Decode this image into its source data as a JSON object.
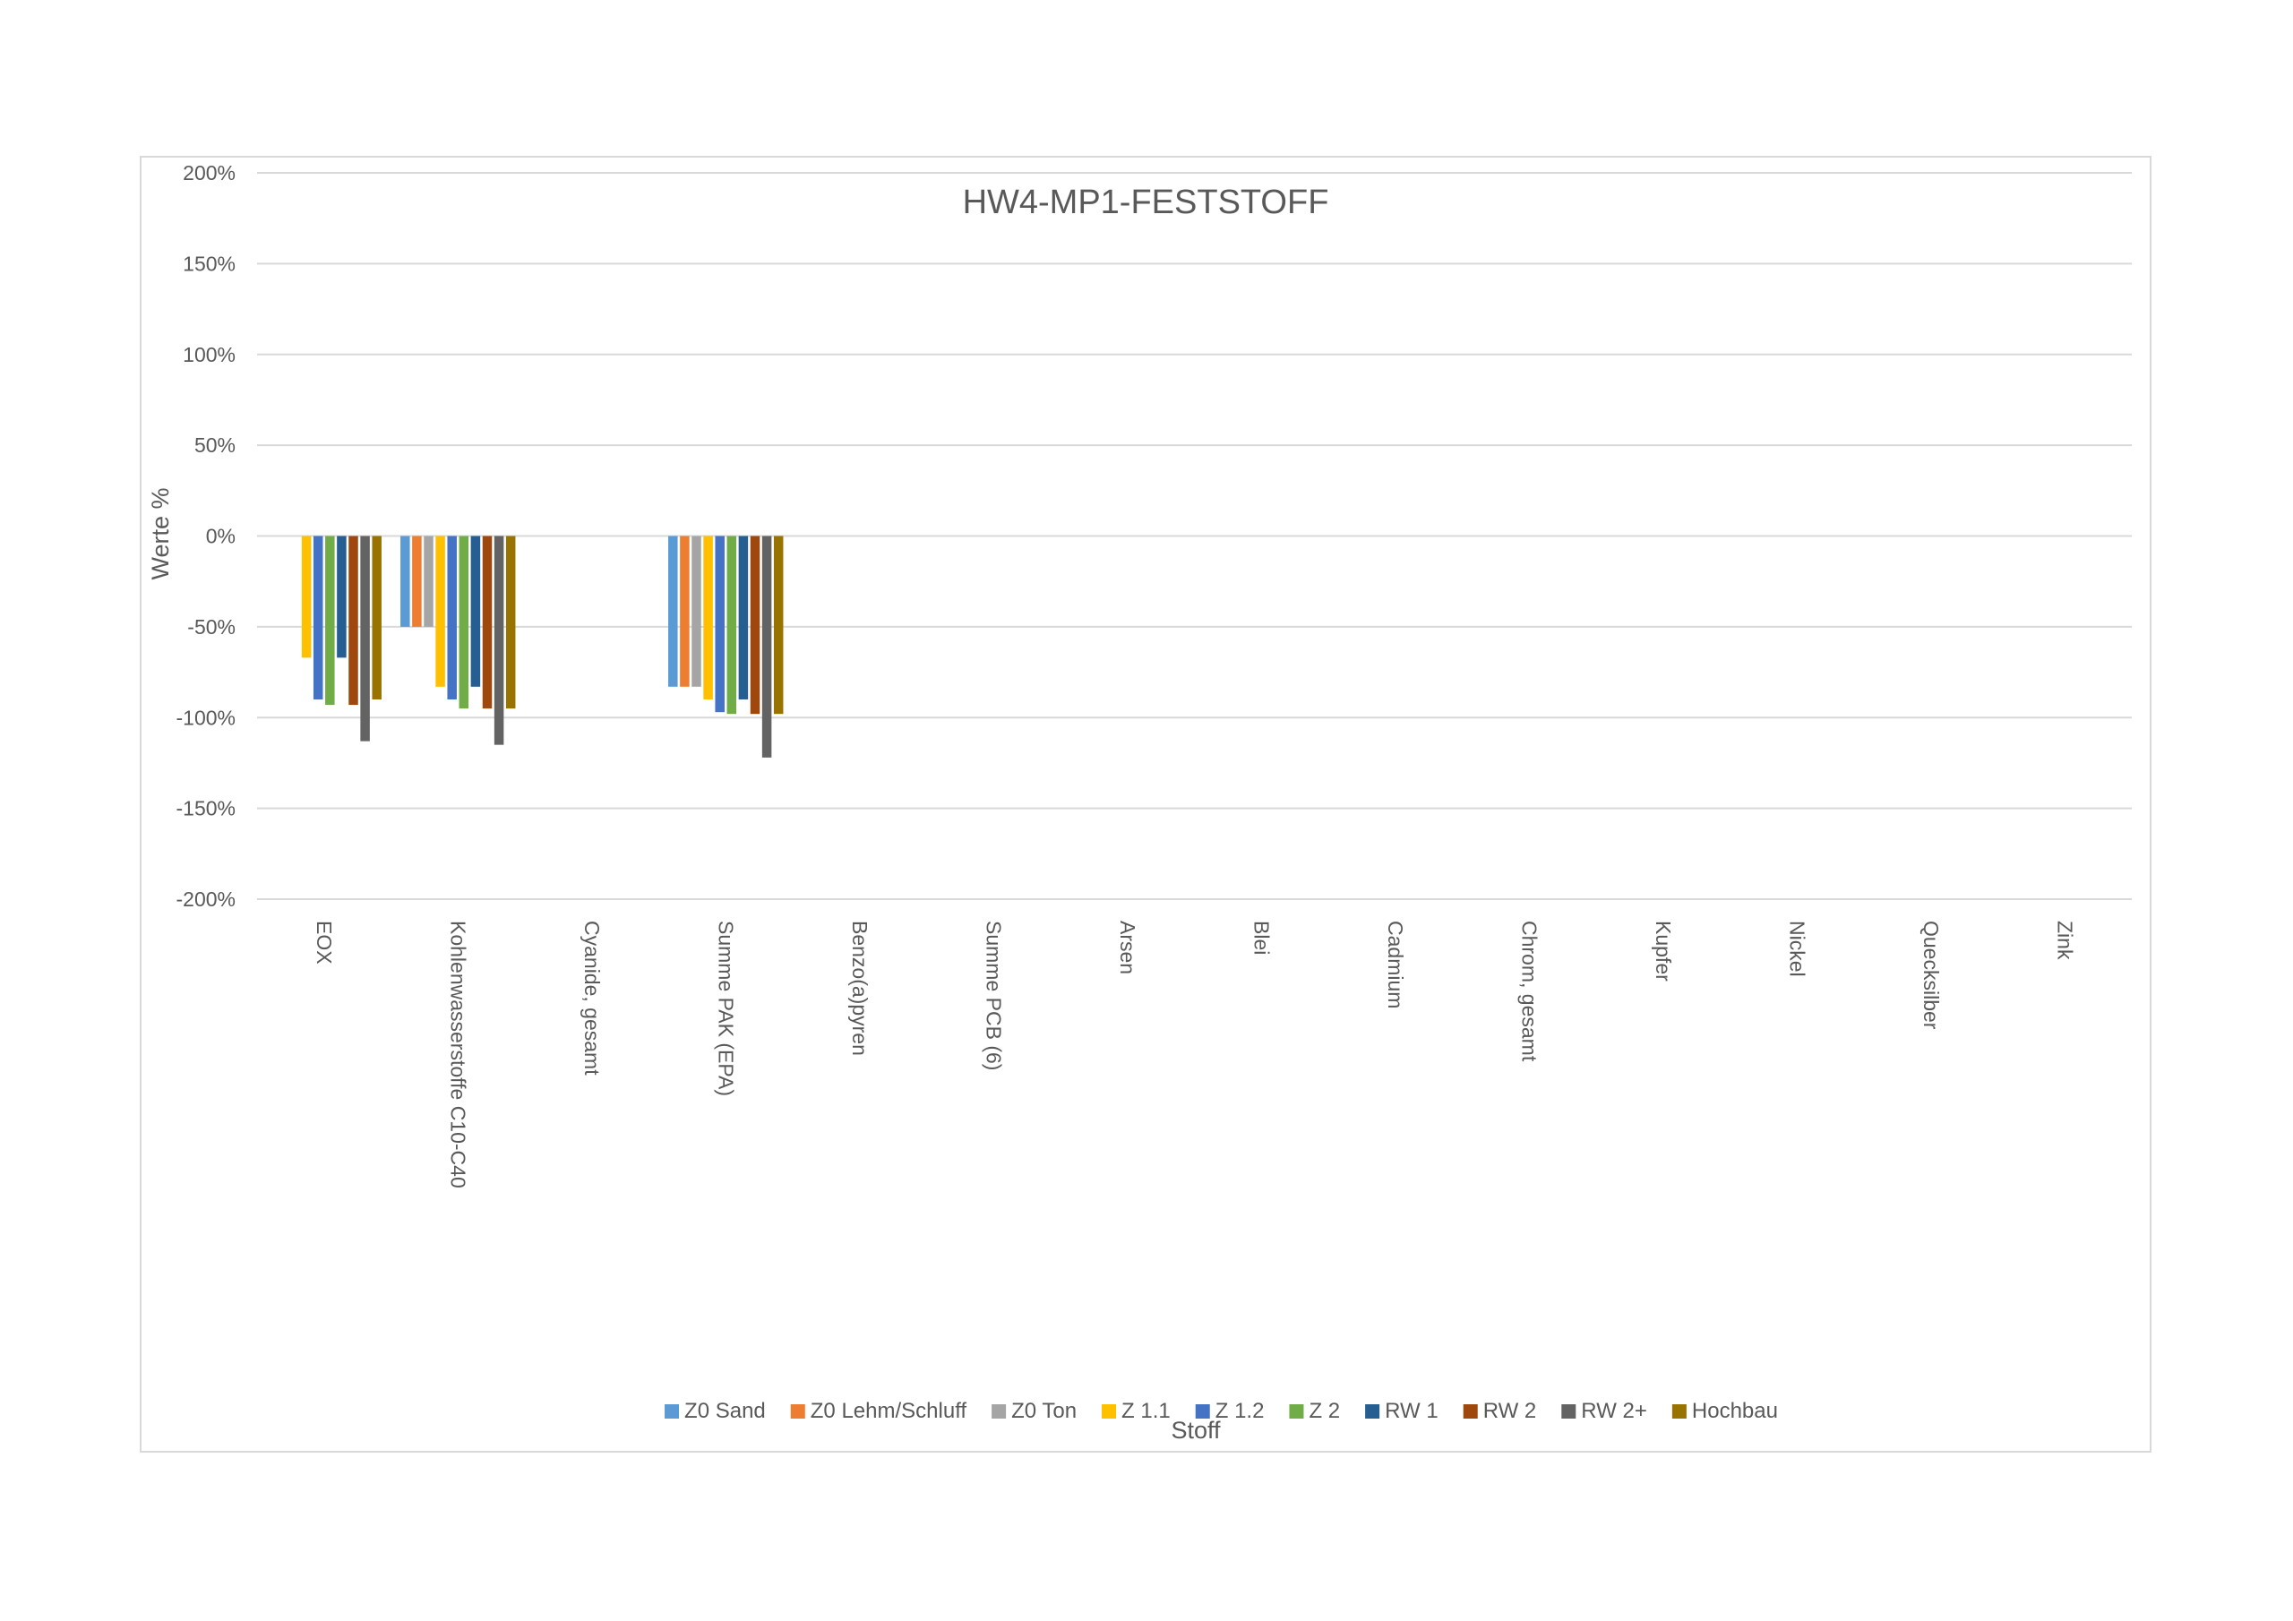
{
  "chart_data": {
    "type": "bar",
    "title": "HW4-MP1-FESTSTOFF",
    "xlabel": "Stoff",
    "ylabel": "Werte %",
    "ylim": [
      -200,
      200
    ],
    "yticks": [
      "200%",
      "150%",
      "100%",
      "50%",
      "0%",
      "-50%",
      "-100%",
      "-150%",
      "-200%"
    ],
    "ytick_values": [
      200,
      150,
      100,
      50,
      0,
      -50,
      -100,
      -150,
      -200
    ],
    "grid": true,
    "legend_position": "bottom",
    "categories": [
      "EOX",
      "Kohlenwasserstoffe C10-C40",
      "Cyanide, gesamt",
      "Summe PAK (EPA)",
      "Benzo(a)pyren",
      "Summe PCB (6)",
      "Arsen",
      "Blei",
      "Cadmium",
      "Chrom, gesamt",
      "Kupfer",
      "Nickel",
      "Quecksilber",
      "Zink"
    ],
    "series": [
      {
        "name": "Z0 Sand",
        "color": "#5B9BD5",
        "values": [
          null,
          -50,
          null,
          -83,
          null,
          null,
          null,
          null,
          null,
          null,
          null,
          null,
          null,
          null
        ]
      },
      {
        "name": "Z0 Lehm/Schluff",
        "color": "#ED7D31",
        "values": [
          null,
          -50,
          null,
          -83,
          null,
          null,
          null,
          null,
          null,
          null,
          null,
          null,
          null,
          null
        ]
      },
      {
        "name": "Z0 Ton",
        "color": "#A5A5A5",
        "values": [
          null,
          -50,
          null,
          -83,
          null,
          null,
          null,
          null,
          null,
          null,
          null,
          null,
          null,
          null
        ]
      },
      {
        "name": "Z 1.1",
        "color": "#FFC000",
        "values": [
          -67,
          -83,
          null,
          -90,
          null,
          null,
          null,
          null,
          null,
          null,
          null,
          null,
          null,
          null
        ]
      },
      {
        "name": "Z 1.2",
        "color": "#4472C4",
        "values": [
          -90,
          -90,
          null,
          -97,
          null,
          null,
          null,
          null,
          null,
          null,
          null,
          null,
          null,
          null
        ]
      },
      {
        "name": "Z 2",
        "color": "#70AD47",
        "values": [
          -93,
          -95,
          null,
          -98,
          null,
          null,
          null,
          null,
          null,
          null,
          null,
          null,
          null,
          null
        ]
      },
      {
        "name": "RW 1",
        "color": "#255E91",
        "values": [
          -67,
          -83,
          null,
          -90,
          null,
          null,
          null,
          null,
          null,
          null,
          null,
          null,
          null,
          null
        ]
      },
      {
        "name": "RW 2",
        "color": "#9E480E",
        "values": [
          -93,
          -95,
          null,
          -98,
          null,
          null,
          null,
          null,
          null,
          null,
          null,
          null,
          null,
          null
        ]
      },
      {
        "name": "RW 2+",
        "color": "#636363",
        "values": [
          -113,
          -115,
          null,
          -122,
          null,
          null,
          null,
          null,
          null,
          null,
          null,
          null,
          null,
          null
        ]
      },
      {
        "name": "Hochbau",
        "color": "#997300",
        "values": [
          -90,
          -95,
          null,
          -98,
          null,
          null,
          null,
          null,
          null,
          null,
          null,
          null,
          null,
          null
        ]
      }
    ]
  }
}
